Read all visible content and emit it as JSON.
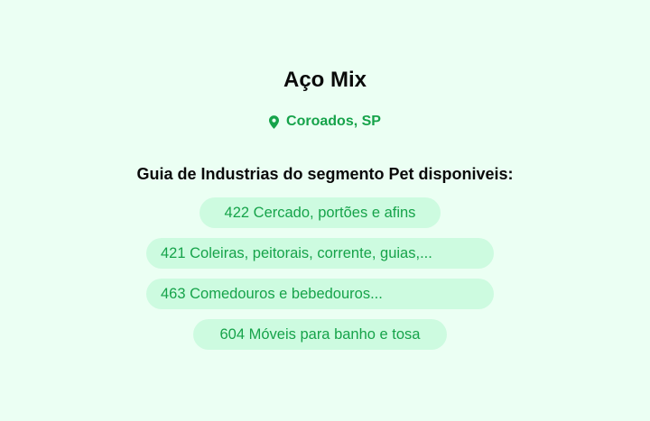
{
  "company": {
    "name": "Aço Mix",
    "location": "Coroados, SP",
    "location_icon": "map-pin-icon"
  },
  "section": {
    "title": "Guia de Industrias do segmento Pet disponiveis:"
  },
  "categories": [
    {
      "label": "422 Cercado, portões e afins"
    },
    {
      "label": "421 Coleiras, peitorais, corrente, guias,..."
    },
    {
      "label": "463 Comedouros e bebedouros..."
    },
    {
      "label": "604 Móveis para banho e tosa"
    }
  ],
  "colors": {
    "accent": "#16a34a",
    "pill_bg": "#cdfbe0",
    "background": "#ebfff3"
  }
}
